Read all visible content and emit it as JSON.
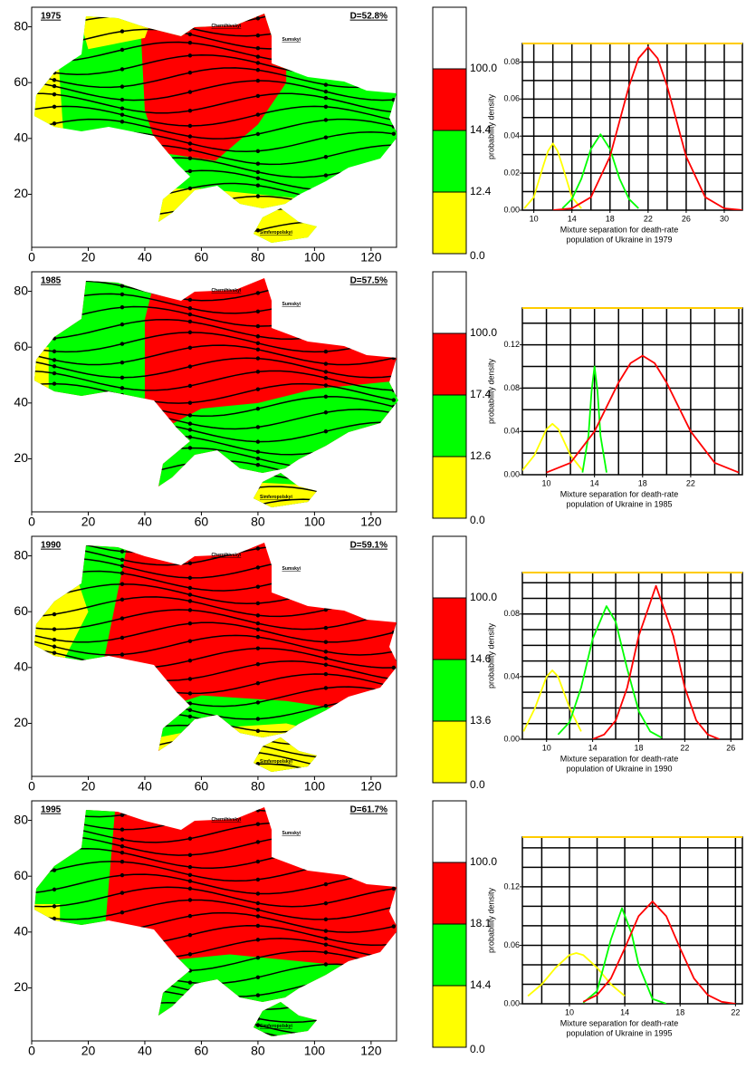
{
  "chart_data": [
    {
      "type": "contour-map",
      "year": "1975",
      "d_label": "D=52.8%",
      "xlim": [
        0,
        129
      ],
      "ylim": [
        1,
        87
      ],
      "xticks": [
        0,
        20,
        40,
        60,
        80,
        100,
        120
      ],
      "yticks": [
        20,
        40,
        60,
        80
      ],
      "places": [
        "Chernihivskyi",
        "Sumskyi",
        "Simferopolskyi"
      ],
      "colorbar": {
        "ticks": [
          {
            "value": 0,
            "label": "0.0"
          },
          12.4,
          14.4,
          {
            "value": 100,
            "label": "100.0"
          }
        ],
        "colors": [
          "#ffff00",
          "#00ff00",
          "#ff0000",
          "#ffffff"
        ]
      }
    },
    {
      "type": "line",
      "ylabel": "probability density",
      "xlabel": [
        "Mixture separation for death-rate",
        "population of Ukraine in 1979"
      ],
      "xlim": [
        8.8,
        31.9
      ],
      "ylim": [
        0,
        0.09
      ],
      "xticks": [
        10,
        14,
        18,
        22,
        26,
        30
      ],
      "yticks": [
        {
          "value": 0,
          "label": "0.00"
        },
        0.02,
        0.04,
        0.06,
        0.08
      ],
      "xgrid": [
        10,
        12,
        14,
        16,
        18,
        20,
        22,
        24,
        26,
        28,
        30
      ],
      "ygrid": [
        0.01,
        0.02,
        0.03,
        0.04,
        0.05,
        0.06,
        0.07,
        0.08
      ],
      "series": [
        {
          "color": "#ffff00",
          "x": [
            9,
            10,
            11,
            11.5,
            12,
            12.5,
            13,
            14,
            15
          ],
          "values": [
            0.001,
            0.007,
            0.024,
            0.032,
            0.036,
            0.032,
            0.024,
            0.007,
            0.001
          ]
        },
        {
          "color": "#00ff00",
          "x": [
            13,
            14,
            15,
            16,
            17,
            18,
            19,
            20,
            21
          ],
          "values": [
            0.001,
            0.006,
            0.017,
            0.033,
            0.041,
            0.033,
            0.017,
            0.006,
            0.001
          ]
        },
        {
          "color": "#ff0000",
          "x": [
            12,
            14,
            16,
            18,
            20,
            21,
            22,
            23,
            24,
            26,
            28,
            30,
            32
          ],
          "values": [
            0,
            0.001,
            0.007,
            0.029,
            0.067,
            0.082,
            0.088,
            0.082,
            0.067,
            0.029,
            0.007,
            0.001,
            0
          ]
        }
      ]
    },
    {
      "type": "contour-map",
      "year": "1985",
      "d_label": "D=57.5%",
      "xlim": [
        0,
        129
      ],
      "ylim": [
        1,
        87
      ],
      "xticks": [
        0,
        20,
        40,
        60,
        80,
        100,
        120
      ],
      "yticks": [
        20,
        40,
        60,
        80
      ],
      "places": [
        "Chernihivskyi",
        "Sumskyi",
        "Simferopolskyi"
      ],
      "colorbar": {
        "ticks": [
          {
            "value": 0,
            "label": "0.0"
          },
          12.6,
          17.4,
          {
            "value": 100,
            "label": "100.0"
          }
        ],
        "colors": [
          "#ffff00",
          "#00ff00",
          "#ff0000",
          "#ffffff"
        ]
      }
    },
    {
      "type": "line",
      "ylabel": "probability density",
      "xlabel": [
        "Mixture separation for death-rate",
        "population of Ukraine in 1985"
      ],
      "xlim": [
        8,
        26.3
      ],
      "ylim": [
        0,
        0.154
      ],
      "xticks": [
        10,
        14,
        18,
        22
      ],
      "yticks": [
        {
          "value": 0,
          "label": "0.00"
        },
        0.04,
        0.08,
        0.12
      ],
      "xgrid": [
        10,
        12,
        14,
        16,
        18,
        20,
        22,
        24,
        26
      ],
      "ygrid": [
        0.02,
        0.04,
        0.06,
        0.08,
        0.1,
        0.12,
        0.14
      ],
      "series": [
        {
          "color": "#ffff00",
          "x": [
            8,
            9,
            10,
            10.5,
            11,
            12,
            13
          ],
          "values": [
            0.004,
            0.018,
            0.042,
            0.047,
            0.042,
            0.018,
            0.004
          ]
        },
        {
          "color": "#00ff00",
          "x": [
            13,
            13.5,
            13.75,
            14,
            14.25,
            14.5,
            15
          ],
          "values": [
            0.002,
            0.036,
            0.077,
            0.1,
            0.077,
            0.036,
            0.002
          ]
        },
        {
          "color": "#ff0000",
          "x": [
            10,
            12,
            14,
            16,
            17,
            18,
            19,
            20,
            22,
            24,
            26
          ],
          "values": [
            0.002,
            0.011,
            0.04,
            0.085,
            0.103,
            0.11,
            0.103,
            0.085,
            0.04,
            0.011,
            0.002
          ]
        }
      ]
    },
    {
      "type": "contour-map",
      "year": "1990",
      "d_label": "D=59.1%",
      "xlim": [
        0,
        129
      ],
      "ylim": [
        1,
        87
      ],
      "xticks": [
        0,
        20,
        40,
        60,
        80,
        100,
        120
      ],
      "yticks": [
        20,
        40,
        60,
        80
      ],
      "places": [
        "Chernihivskyi",
        "Sumskyi",
        "Simferopolskyi"
      ],
      "colorbar": {
        "ticks": [
          {
            "value": 0,
            "label": "0.0"
          },
          13.6,
          14.6,
          {
            "value": 100,
            "label": "100.0"
          }
        ],
        "colors": [
          "#ffff00",
          "#00ff00",
          "#ff0000",
          "#ffffff"
        ]
      }
    },
    {
      "type": "line",
      "ylabel": "probability density",
      "xlabel": [
        "Mixture separation for death-rate",
        "population of Ukraine in 1990"
      ],
      "xlim": [
        7.9,
        27
      ],
      "ylim": [
        0,
        0.1065
      ],
      "xticks": [
        10,
        14,
        18,
        22,
        26
      ],
      "yticks": [
        {
          "value": 0,
          "label": "0.00"
        },
        0.04,
        0.08
      ],
      "xgrid": [
        10,
        12,
        14,
        16,
        18,
        20,
        22,
        24,
        26
      ],
      "ygrid": [
        0.01,
        0.02,
        0.03,
        0.04,
        0.05,
        0.06,
        0.07,
        0.08,
        0.09,
        0.1
      ],
      "series": [
        {
          "color": "#ffff00",
          "x": [
            8,
            9,
            10,
            10.5,
            11,
            12,
            13
          ],
          "values": [
            0.005,
            0.02,
            0.04,
            0.044,
            0.04,
            0.02,
            0.005
          ]
        },
        {
          "color": "#00ff00",
          "x": [
            11,
            12,
            13,
            14,
            15.2,
            16,
            17,
            18,
            19,
            20
          ],
          "values": [
            0.003,
            0.011,
            0.033,
            0.064,
            0.085,
            0.075,
            0.045,
            0.018,
            0.005,
            0.001
          ]
        },
        {
          "color": "#ff0000",
          "x": [
            14,
            15,
            16,
            17,
            18,
            19.5,
            21,
            22,
            23,
            24,
            25
          ],
          "values": [
            0,
            0.003,
            0.012,
            0.033,
            0.066,
            0.098,
            0.066,
            0.033,
            0.012,
            0.003,
            0
          ]
        }
      ]
    },
    {
      "type": "contour-map",
      "year": "1995",
      "d_label": "D=61.7%",
      "xlim": [
        0,
        129
      ],
      "ylim": [
        1,
        87
      ],
      "xticks": [
        0,
        20,
        40,
        60,
        80,
        100,
        120
      ],
      "yticks": [
        20,
        40,
        60,
        80
      ],
      "places": [
        "Chernihivskyi",
        "Sumskyi",
        "Simferopolskyi"
      ],
      "colorbar": {
        "ticks": [
          {
            "value": 0,
            "label": "0.0"
          },
          14.4,
          18.1,
          {
            "value": 100,
            "label": "100.0"
          }
        ],
        "colors": [
          "#ffff00",
          "#00ff00",
          "#ff0000",
          "#ffffff"
        ]
      }
    },
    {
      "type": "line",
      "ylabel": "probability density",
      "xlabel": [
        "Mixture separation for death-rate",
        "population of Ukraine in 1995"
      ],
      "xlim": [
        6.6,
        22.5
      ],
      "ylim": [
        0,
        0.171
      ],
      "xticks": [
        10,
        14,
        18,
        22
      ],
      "yticks": [
        {
          "value": 0,
          "label": "0.00"
        },
        0.06,
        0.12
      ],
      "xgrid": [
        8,
        10,
        12,
        14,
        16,
        18,
        20,
        22
      ],
      "ygrid": [
        0.02,
        0.04,
        0.06,
        0.08,
        0.1,
        0.12,
        0.14,
        0.16
      ],
      "series": [
        {
          "color": "#ffff00",
          "x": [
            7,
            8,
            9,
            10,
            10.5,
            11,
            12,
            13,
            14
          ],
          "values": [
            0.008,
            0.02,
            0.037,
            0.05,
            0.052,
            0.05,
            0.037,
            0.02,
            0.008
          ]
        },
        {
          "color": "#00ff00",
          "x": [
            11,
            12,
            13,
            13.8,
            14.5,
            15,
            16,
            17
          ],
          "values": [
            0.001,
            0.013,
            0.066,
            0.098,
            0.072,
            0.04,
            0.005,
            0
          ]
        },
        {
          "color": "#ff0000",
          "x": [
            11,
            12,
            13,
            14,
            15,
            16,
            17,
            18,
            19,
            20,
            21,
            22
          ],
          "values": [
            0.002,
            0.009,
            0.026,
            0.057,
            0.09,
            0.105,
            0.09,
            0.057,
            0.026,
            0.009,
            0.002,
            0
          ]
        }
      ]
    }
  ]
}
